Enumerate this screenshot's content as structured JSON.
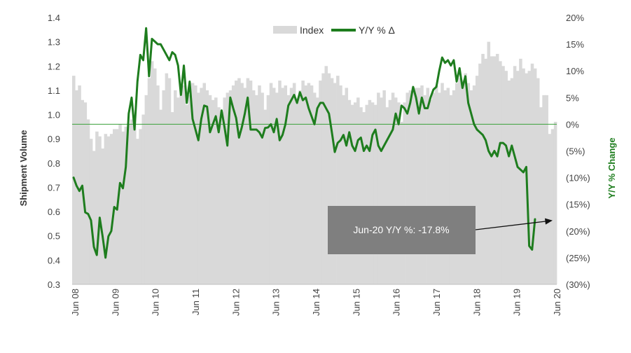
{
  "chart_data": {
    "type": "bar+line",
    "title": "",
    "x_tick_labels": [
      "Jun 08",
      "Jun 09",
      "Jun 10",
      "Jun 11",
      "Jun 12",
      "Jun 13",
      "Jun 14",
      "Jun 15",
      "Jun 16",
      "Jun 17",
      "Jun 18",
      "Jun 19",
      "Jun 20"
    ],
    "y_left": {
      "label": "Shipment Volume",
      "range": [
        0.3,
        1.4
      ],
      "tick_labels": [
        "0.3",
        "0.4",
        "0.5",
        "0.6",
        "0.7",
        "0.8",
        "0.9",
        "1.0",
        "1.1",
        "1.2",
        "1.3",
        "1.4"
      ]
    },
    "y_right": {
      "label": "Y/Y % Change",
      "range": [
        -30,
        20
      ],
      "tick_labels": [
        "(30%)",
        "(25%)",
        "(20%)",
        "(15%)",
        "(10%)",
        "(5%)",
        "0%",
        "5%",
        "10%",
        "15%",
        "20%"
      ]
    },
    "legend": {
      "position": "top-center",
      "index_label": "Index",
      "yoy_label": "Y/Y % Δ"
    },
    "colors": {
      "index_bars": "#d9d9d9",
      "yoy_line": "#1e7d1e",
      "zero_line": "#3aa03a",
      "annotation_box": "#7f7f7f",
      "right_axis_title": "#1e7d1e"
    },
    "series": [
      {
        "name": "Index",
        "kind": "bar",
        "start": "2008-06",
        "values": [
          1.16,
          1.1,
          1.12,
          1.06,
          1.05,
          0.98,
          0.9,
          0.85,
          0.93,
          0.91,
          0.86,
          0.92,
          0.91,
          0.92,
          0.94,
          0.94,
          0.96,
          0.93,
          0.95,
          0.96,
          0.98,
          0.99,
          0.9,
          0.94,
          1.0,
          1.08,
          1.15,
          1.22,
          1.19,
          1.12,
          1.02,
          1.1,
          1.17,
          1.15,
          1.01,
          1.1,
          1.07,
          1.1,
          1.12,
          1.04,
          1.08,
          1.13,
          1.12,
          1.09,
          1.11,
          1.13,
          1.1,
          1.08,
          1.06,
          1.07,
          1.03,
          1.01,
          1.07,
          1.09,
          1.1,
          1.12,
          1.14,
          1.15,
          1.13,
          1.11,
          1.15,
          1.14,
          1.1,
          1.08,
          1.12,
          1.09,
          1.02,
          1.08,
          1.13,
          1.11,
          1.09,
          1.14,
          1.11,
          1.12,
          1.08,
          1.11,
          1.13,
          1.05,
          1.1,
          1.14,
          1.12,
          1.13,
          1.12,
          1.09,
          1.07,
          1.14,
          1.17,
          1.2,
          1.17,
          1.15,
          1.13,
          1.16,
          1.12,
          1.08,
          1.11,
          1.06,
          1.04,
          1.05,
          1.07,
          1.03,
          1.01,
          1.04,
          1.06,
          1.05,
          1.04,
          1.09,
          1.07,
          1.1,
          1.03,
          1.06,
          1.09,
          1.07,
          1.05,
          0.97,
          1.05,
          1.09,
          1.1,
          1.11,
          1.11,
          1.11,
          1.12,
          1.08,
          1.11,
          1.06,
          1.09,
          1.12,
          1.09,
          1.13,
          1.1,
          1.11,
          1.08,
          1.1,
          1.13,
          1.15,
          1.14,
          1.17,
          1.13,
          1.1,
          1.12,
          1.16,
          1.21,
          1.25,
          1.23,
          1.3,
          1.24,
          1.24,
          1.25,
          1.22,
          1.2,
          1.18,
          1.14,
          1.15,
          1.2,
          1.18,
          1.23,
          1.19,
          1.17,
          1.18,
          1.21,
          1.19,
          1.15,
          1.03,
          1.08,
          1.08,
          0.92,
          0.94,
          0.97
        ]
      },
      {
        "name": "Y/Y % Δ",
        "kind": "line",
        "start": "2008-06",
        "values": [
          -10,
          -11.5,
          -12.5,
          -11.5,
          -16.5,
          -16.8,
          -18,
          -23,
          -24.5,
          -17.5,
          -21,
          -25,
          -21,
          -20,
          -15.5,
          -16,
          -11,
          -12,
          -8,
          2,
          5,
          -1,
          8,
          13,
          12,
          18,
          9,
          16,
          15.5,
          15,
          15,
          14,
          13,
          12,
          13.5,
          13,
          11,
          5.5,
          11,
          4,
          8,
          1,
          -1,
          -3,
          1,
          3.5,
          3.3,
          -1.5,
          0,
          1.5,
          -1.5,
          2.6,
          -0.5,
          -4,
          5,
          3,
          1.2,
          -2.5,
          -0.5,
          2,
          5,
          -1,
          -1,
          -1,
          -1.5,
          -2.5,
          -0.7,
          -0.6,
          0,
          -1.5,
          1,
          -3,
          -2,
          0,
          3.5,
          4.5,
          5.5,
          4,
          6,
          4.5,
          5,
          3,
          1.5,
          0,
          3,
          4,
          4,
          3,
          2,
          -1.5,
          -5.2,
          -3.5,
          -3,
          -2,
          -4,
          -1.5,
          -4,
          -5,
          -3,
          -2.5,
          -5,
          -4,
          -5,
          -2,
          -1,
          -4,
          -5,
          -4,
          -3,
          -2,
          -1,
          2,
          0,
          3.5,
          3,
          2,
          4,
          7,
          5,
          2,
          5,
          3,
          3,
          5,
          6.5,
          7,
          10,
          12.5,
          11.5,
          12,
          11,
          12,
          8,
          10.5,
          6.8,
          9,
          4,
          2,
          0,
          -1,
          -1.5,
          -2,
          -3,
          -5,
          -6,
          -5,
          -6,
          -3.5,
          -3.5,
          -4,
          -6,
          -4,
          -6,
          -8,
          -8.5,
          -9,
          -8,
          -22.8,
          -23.5,
          -17.8
        ]
      }
    ],
    "annotation": {
      "text": "Jun-20 Y/Y %: -17.8%"
    }
  }
}
